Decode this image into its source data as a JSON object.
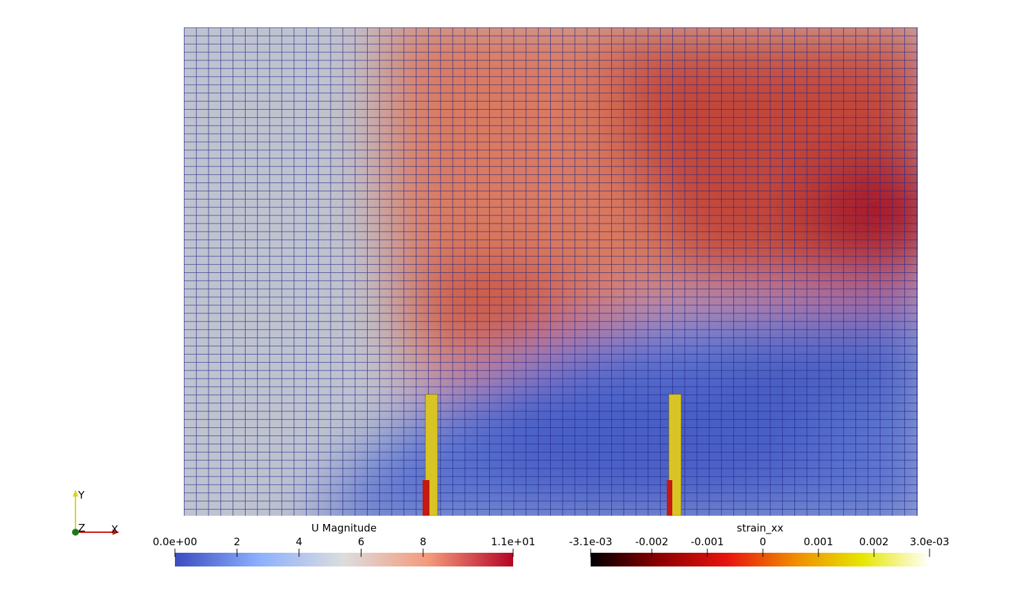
{
  "axes_triad": {
    "y": "Y",
    "z": "Z",
    "x": "X"
  },
  "colorbars": [
    {
      "title": "U Magnitude",
      "range": [
        0,
        10.9
      ],
      "ticks": [
        {
          "value": 0,
          "label": "0.0e+00"
        },
        2,
        4,
        6,
        8,
        {
          "value": 10.9,
          "label": "1.1e+01"
        }
      ],
      "colors": [
        "#3b4cc0",
        "#8db0fe",
        "#dddddd",
        "#f49a7b",
        "#b40426"
      ]
    },
    {
      "title": "strain_xx",
      "range": [
        -0.0031,
        0.003
      ],
      "ticks": [
        {
          "value": -0.0031,
          "label": "-3.1e-03"
        },
        -0.002,
        -0.001,
        0,
        0.001,
        0.002,
        {
          "value": 0.003,
          "label": "3.0e-03"
        }
      ],
      "colors": [
        "#000000",
        "#8b0000",
        "#e8120e",
        "#f08a00",
        "#e6e600",
        "#ffffff"
      ]
    }
  ]
}
